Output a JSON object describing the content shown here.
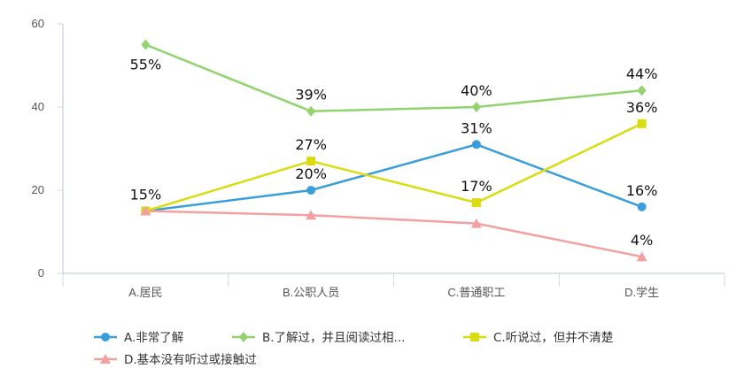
{
  "chart_data": {
    "type": "line",
    "categories": [
      "A.居民",
      "B.公职人员",
      "C.普通职工",
      "D.学生"
    ],
    "ylim": [
      0,
      60
    ],
    "yticks": [
      0,
      20,
      40,
      60
    ],
    "grid": false,
    "legend_position": "bottom",
    "series": [
      {
        "name": "A.非常了解",
        "values": [
          15,
          20,
          31,
          16
        ],
        "labels": [
          "15%",
          "20%",
          "31%",
          "16%"
        ],
        "color": "#3a9fd8",
        "marker": "circle"
      },
      {
        "name": "B.了解过，并且阅读过相...",
        "values": [
          55,
          39,
          40,
          44
        ],
        "labels": [
          "55%",
          "39%",
          "40%",
          "44%"
        ],
        "color": "#92d36e",
        "marker": "diamond"
      },
      {
        "name": "C.听说过，但并不清楚",
        "values": [
          15,
          27,
          17,
          36
        ],
        "labels": [
          "",
          "27%",
          "17%",
          "36%"
        ],
        "color": "#d9dc0e",
        "marker": "square"
      },
      {
        "name": "D.基本没有听过或接触过",
        "values": [
          15,
          14,
          12,
          4
        ],
        "labels": [
          "",
          "",
          "",
          "4%"
        ],
        "color": "#f4a0a0",
        "marker": "triangle"
      }
    ]
  }
}
